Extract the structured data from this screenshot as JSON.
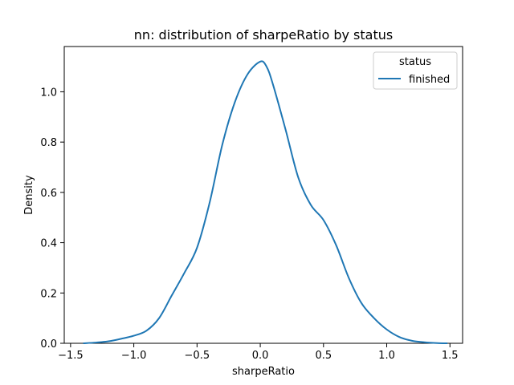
{
  "chart_data": {
    "type": "line",
    "title": "nn: distribution of sharpeRatio by status",
    "xlabel": "sharpeRatio",
    "ylabel": "Density",
    "xlim": [
      -1.55,
      1.6
    ],
    "ylim": [
      0.0,
      1.18
    ],
    "xticks": [
      {
        "value": -1.5,
        "label": "−1.5"
      },
      {
        "value": -1.0,
        "label": "−1.0"
      },
      {
        "value": -0.5,
        "label": "−0.5"
      },
      {
        "value": 0.0,
        "label": "0.0"
      },
      {
        "value": 0.5,
        "label": "0.5"
      },
      {
        "value": 1.0,
        "label": "1.0"
      },
      {
        "value": 1.5,
        "label": "1.5"
      }
    ],
    "yticks": [
      {
        "value": 0.0,
        "label": "0.0"
      },
      {
        "value": 0.2,
        "label": "0.2"
      },
      {
        "value": 0.4,
        "label": "0.4"
      },
      {
        "value": 0.6,
        "label": "0.6"
      },
      {
        "value": 0.8,
        "label": "0.8"
      },
      {
        "value": 1.0,
        "label": "1.0"
      }
    ],
    "grid": false,
    "legend": {
      "title": "status",
      "placement": "top-right"
    },
    "series": [
      {
        "name": "finished",
        "color": "#1f77b4",
        "x": [
          -1.4,
          -1.3,
          -1.2,
          -1.1,
          -1.0,
          -0.9,
          -0.8,
          -0.7,
          -0.6,
          -0.5,
          -0.4,
          -0.3,
          -0.2,
          -0.1,
          0.0,
          0.05,
          0.1,
          0.2,
          0.3,
          0.4,
          0.5,
          0.6,
          0.7,
          0.8,
          0.9,
          1.0,
          1.1,
          1.2,
          1.3,
          1.4,
          1.48
        ],
        "y": [
          0.0,
          0.003,
          0.008,
          0.018,
          0.03,
          0.05,
          0.1,
          0.19,
          0.28,
          0.38,
          0.56,
          0.79,
          0.96,
          1.07,
          1.12,
          1.1,
          1.03,
          0.85,
          0.66,
          0.55,
          0.49,
          0.39,
          0.26,
          0.16,
          0.1,
          0.055,
          0.025,
          0.01,
          0.004,
          0.001,
          0.0
        ]
      }
    ]
  }
}
